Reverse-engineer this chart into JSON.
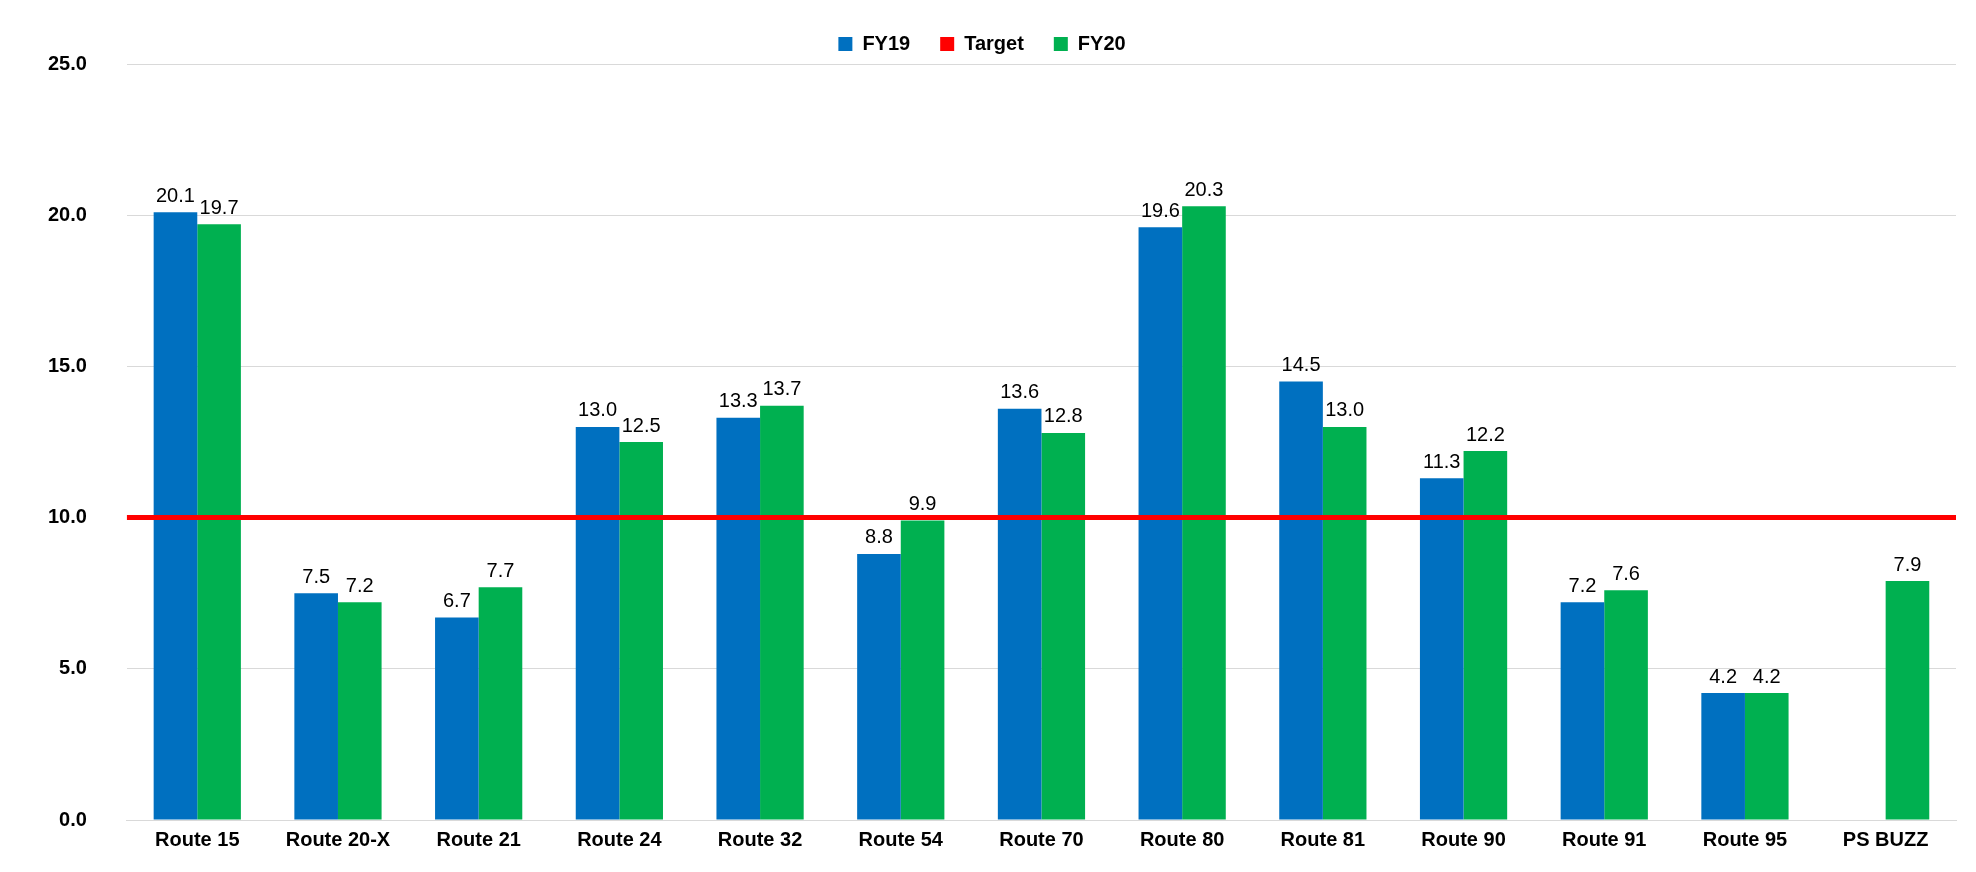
{
  "chart_data": {
    "type": "bar",
    "categories": [
      "Route 15",
      "Route 20-X",
      "Route 21",
      "Route 24",
      "Route 32",
      "Route 54",
      "Route 70",
      "Route 80",
      "Route 81",
      "Route 90",
      "Route 91",
      "Route 95",
      "PS BUZZ"
    ],
    "series": [
      {
        "name": "FY19",
        "color": "#0070c0",
        "values": [
          20.1,
          7.5,
          6.7,
          13.0,
          13.3,
          8.8,
          13.6,
          19.6,
          14.5,
          11.3,
          7.2,
          4.2,
          null
        ],
        "value_labels": [
          "20.1",
          "7.5",
          "6.7",
          "13.0",
          "13.3",
          "8.8",
          "13.6",
          "19.6",
          "14.5",
          "11.3",
          "7.2",
          "4.2",
          null
        ]
      },
      {
        "name": "FY20",
        "color": "#00b050",
        "values": [
          19.7,
          7.2,
          7.7,
          12.5,
          13.7,
          9.9,
          12.8,
          20.3,
          13.0,
          12.2,
          7.6,
          4.2,
          7.9
        ],
        "value_labels": [
          "19.7",
          "7.2",
          "7.7",
          "12.5",
          "13.7",
          "9.9",
          "12.8",
          "20.3",
          "13.0",
          "12.2",
          "7.6",
          "4.2",
          "7.9"
        ]
      }
    ],
    "ref_lines": [
      {
        "axis": "y",
        "value": 10.0,
        "label": "Target",
        "color": "#ff0000"
      }
    ],
    "ylim": [
      0,
      25
    ],
    "yticks": [
      {
        "value": 0,
        "label": "0.0"
      },
      {
        "value": 5,
        "label": "5.0"
      },
      {
        "value": 10,
        "label": "10.0"
      },
      {
        "value": 15,
        "label": "15.0"
      },
      {
        "value": 20,
        "label": "20.0"
      },
      {
        "value": 25,
        "label": "25.0"
      }
    ],
    "grid": "y",
    "legend": "top"
  }
}
